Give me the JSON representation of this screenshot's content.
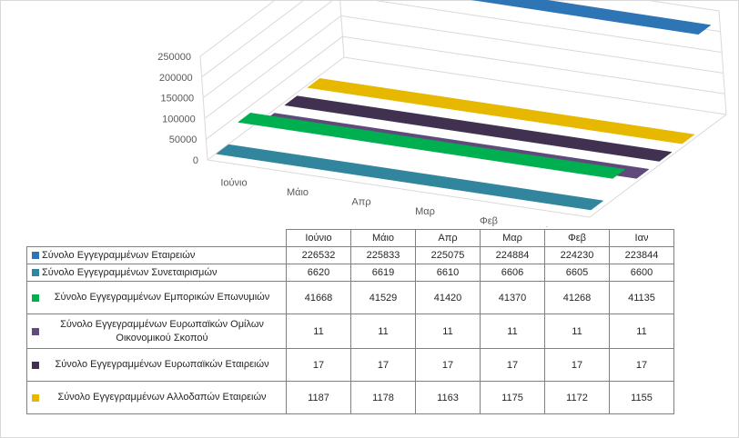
{
  "chart_data": {
    "type": "3d-bar",
    "categories": [
      "Ιούνιο",
      "Μάιο",
      "Απρ",
      "Μαρ",
      "Φεβ",
      "Ιαν"
    ],
    "y_ticks": [
      "250000",
      "200000",
      "150000",
      "100000",
      "50000",
      "0"
    ],
    "ylim": [
      0,
      250000
    ],
    "grid": true,
    "series": [
      {
        "name": "Σύνολο Εγγεγραμμένων Εταιρειών",
        "color": "#2e75b6",
        "values": [
          226532,
          225833,
          225075,
          224884,
          224230,
          223844
        ]
      },
      {
        "name": "Σύνολο Εγγεγραμμένων Συνεταιρισμών",
        "color": "#31859c",
        "values": [
          6620,
          6619,
          6610,
          6606,
          6605,
          6600
        ]
      },
      {
        "name": "Σύνολο Εγγεγραμμένων  Εμπορικών Επωνυμιών",
        "color": "#00b050",
        "values": [
          41668,
          41529,
          41420,
          41370,
          41268,
          41135
        ]
      },
      {
        "name": "Σύνολο Εγγεγραμμένων Ευρωπαϊκών Ομίλων Οικονομικού Σκοπού",
        "color": "#604a7b",
        "values": [
          11,
          11,
          11,
          11,
          11,
          11
        ]
      },
      {
        "name": "Σύνολο Εγγεγραμμένων Ευρωπαϊκών Εταιρειών",
        "color": "#403151",
        "values": [
          17,
          17,
          17,
          17,
          17,
          17
        ]
      },
      {
        "name": "Σύνολο Εγγεγραμμένων Αλλοδαπών Εταιρειών",
        "color": "#e6b800",
        "values": [
          1187,
          1178,
          1163,
          1175,
          1172,
          1155
        ]
      }
    ]
  }
}
